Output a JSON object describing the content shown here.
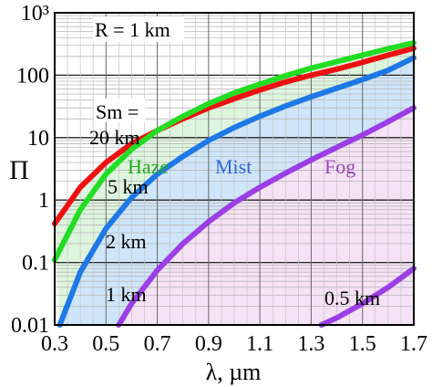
{
  "chart_data": {
    "type": "line",
    "title": "",
    "xlabel": "λ, µm",
    "ylabel": "Π",
    "x_axis": {
      "scale": "linear",
      "range": [
        0.3,
        1.7
      ],
      "tick_values": [
        0.3,
        0.5,
        0.7,
        0.9,
        1.1,
        1.3,
        1.5,
        1.7
      ],
      "tick_labels": [
        "0.3",
        "0.5",
        "0.7",
        "0.9",
        "1.1",
        "1.3",
        "1.5",
        "1.7"
      ]
    },
    "y_axis": {
      "scale": "log",
      "range": [
        0.01,
        1000
      ],
      "tick_values": [
        0.01,
        0.1,
        1,
        10,
        100,
        1000
      ],
      "tick_labels": [
        "0.01",
        "0.1",
        "1",
        "10",
        "100",
        "10³"
      ]
    },
    "grid": true,
    "annotations": {
      "range": "R = 1 km",
      "sm_header": "Sm =",
      "sm_20": "20 km",
      "sm_5": "5 km",
      "sm_2": "2 km",
      "sm_1": "1 km",
      "sm_05": "0.5 km",
      "region_haze": "Haze",
      "region_mist": "Mist",
      "region_fog": "Fog"
    },
    "regions": [
      {
        "name": "Haze",
        "fill": "#ddf5dd",
        "text_color": "#22aa22"
      },
      {
        "name": "Mist",
        "fill": "#cfe6fa",
        "text_color": "#3366dd"
      },
      {
        "name": "Fog",
        "fill": "#f5e2f5",
        "text_color": "#9944bb"
      }
    ],
    "series": [
      {
        "label": "20 km",
        "color": "#ee1111",
        "x": [
          0.3,
          0.4,
          0.5,
          0.6,
          0.7,
          0.8,
          0.9,
          1.0,
          1.1,
          1.2,
          1.3,
          1.4,
          1.5,
          1.6,
          1.7
        ],
        "y": [
          0.42,
          1.6,
          4.0,
          8.0,
          13.0,
          20.0,
          30.0,
          42.0,
          58.0,
          78.0,
          100.0,
          125.0,
          160.0,
          210.0,
          270.0
        ]
      },
      {
        "label": "5 km",
        "color": "#22dd22",
        "x": [
          0.3,
          0.4,
          0.5,
          0.6,
          0.7,
          0.8,
          0.9,
          1.0,
          1.1,
          1.2,
          1.3,
          1.4,
          1.5,
          1.6,
          1.7
        ],
        "y": [
          0.11,
          0.7,
          2.6,
          6.5,
          13.0,
          22.0,
          35.0,
          52.0,
          72.0,
          98.0,
          130.0,
          165.0,
          210.0,
          265.0,
          330.0
        ]
      },
      {
        "label": "2 km",
        "color": "#1e78e6",
        "x": [
          0.32,
          0.4,
          0.5,
          0.6,
          0.7,
          0.8,
          0.9,
          1.0,
          1.1,
          1.2,
          1.3,
          1.4,
          1.5,
          1.6,
          1.7
        ],
        "y": [
          0.01,
          0.07,
          0.35,
          1.1,
          2.6,
          5.0,
          9.0,
          14.5,
          22.0,
          32.0,
          45.0,
          62.0,
          85.0,
          120.0,
          190.0
        ]
      },
      {
        "label": "1 km",
        "color": "#9b3ee6",
        "x": [
          0.55,
          0.6,
          0.7,
          0.8,
          0.9,
          1.0,
          1.1,
          1.2,
          1.3,
          1.4,
          1.5,
          1.6,
          1.7
        ],
        "y": [
          0.01,
          0.022,
          0.075,
          0.2,
          0.45,
          0.9,
          1.6,
          2.7,
          4.4,
          7.0,
          11.0,
          18.0,
          30.0
        ]
      },
      {
        "label": "0.5 km",
        "color": "#9b3ee6",
        "x": [
          1.34,
          1.4,
          1.5,
          1.6,
          1.7
        ],
        "y": [
          0.01,
          0.013,
          0.022,
          0.04,
          0.08
        ]
      }
    ]
  }
}
